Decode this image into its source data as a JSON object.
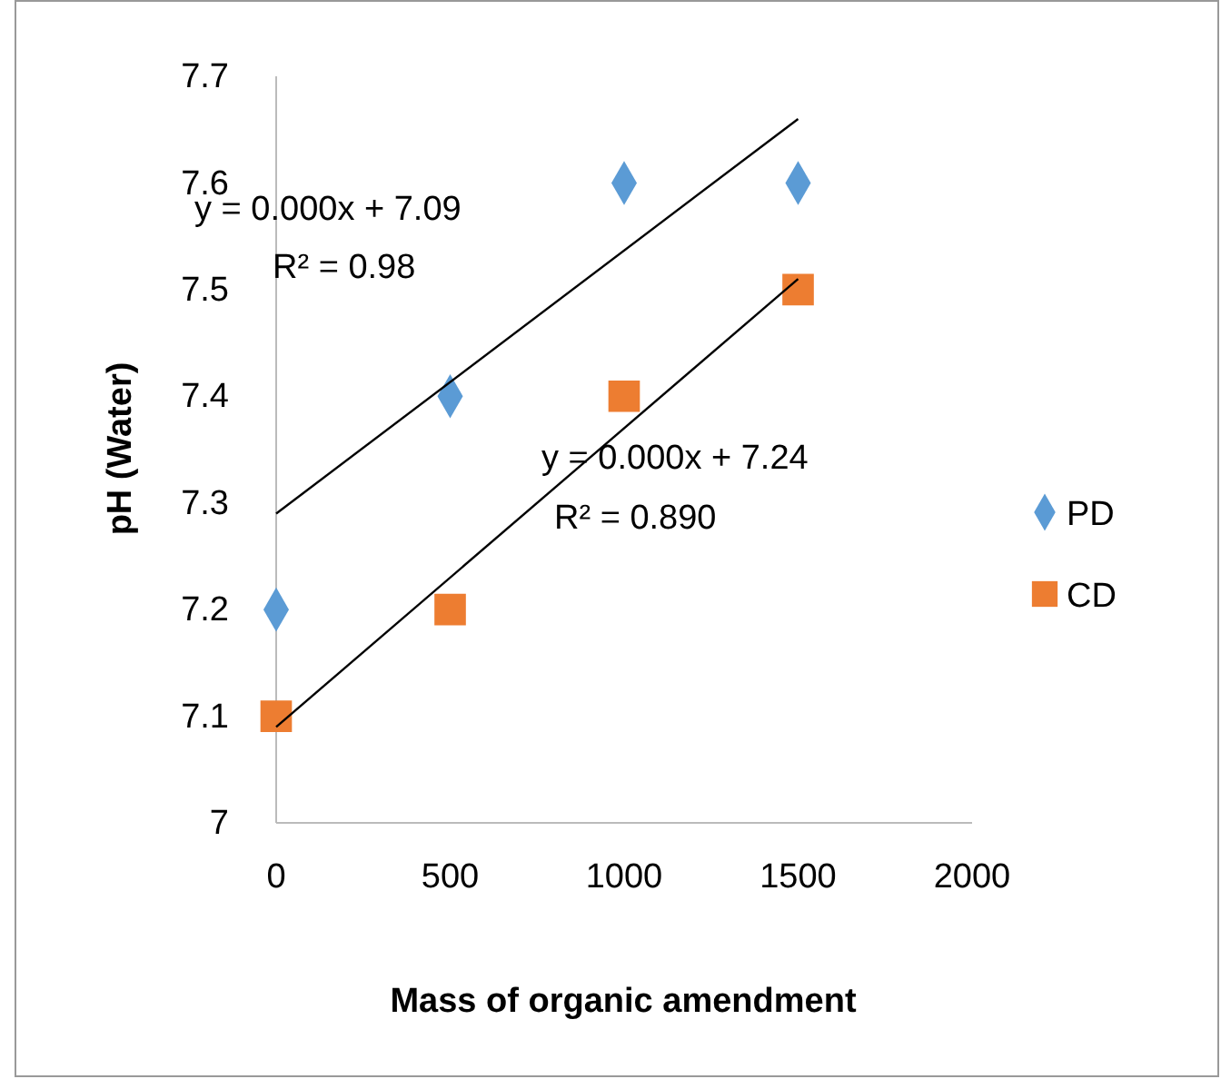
{
  "chart_data": {
    "type": "scatter",
    "xlabel": "Mass of organic amendment",
    "ylabel": "pH (Water)",
    "xlim": [
      0,
      2000
    ],
    "xticks": [
      0,
      500,
      1000,
      1500,
      2000
    ],
    "ylim": [
      7,
      7.7
    ],
    "yticks": [
      7,
      7.1,
      7.2,
      7.3,
      7.4,
      7.5,
      7.6,
      7.7
    ],
    "grid": false,
    "legend": "right",
    "series": [
      {
        "name": "PD",
        "color": "#5b9bd5",
        "marker": "diamond",
        "x": [
          0,
          500,
          1000,
          1500
        ],
        "values": [
          7.2,
          7.4,
          7.6,
          7.6
        ]
      },
      {
        "name": "CD",
        "color": "#ed7d31",
        "marker": "square",
        "x": [
          0,
          500,
          1000,
          1500
        ],
        "values": [
          7.1,
          7.2,
          7.4,
          7.5
        ]
      },
      {
        "type": "line",
        "color": "#000000",
        "marker": "none",
        "x": [
          0,
          1500
        ],
        "values": [
          7.29,
          7.66
        ]
      },
      {
        "type": "line",
        "color": "#000000",
        "marker": "none",
        "x": [
          0,
          1500
        ],
        "values": [
          7.09,
          7.51
        ]
      }
    ],
    "annotations": [
      "y = 0.000x + 7.09",
      "R² = 0.98",
      "y = 0.000x + 7.24",
      "R² = 0.890"
    ]
  }
}
